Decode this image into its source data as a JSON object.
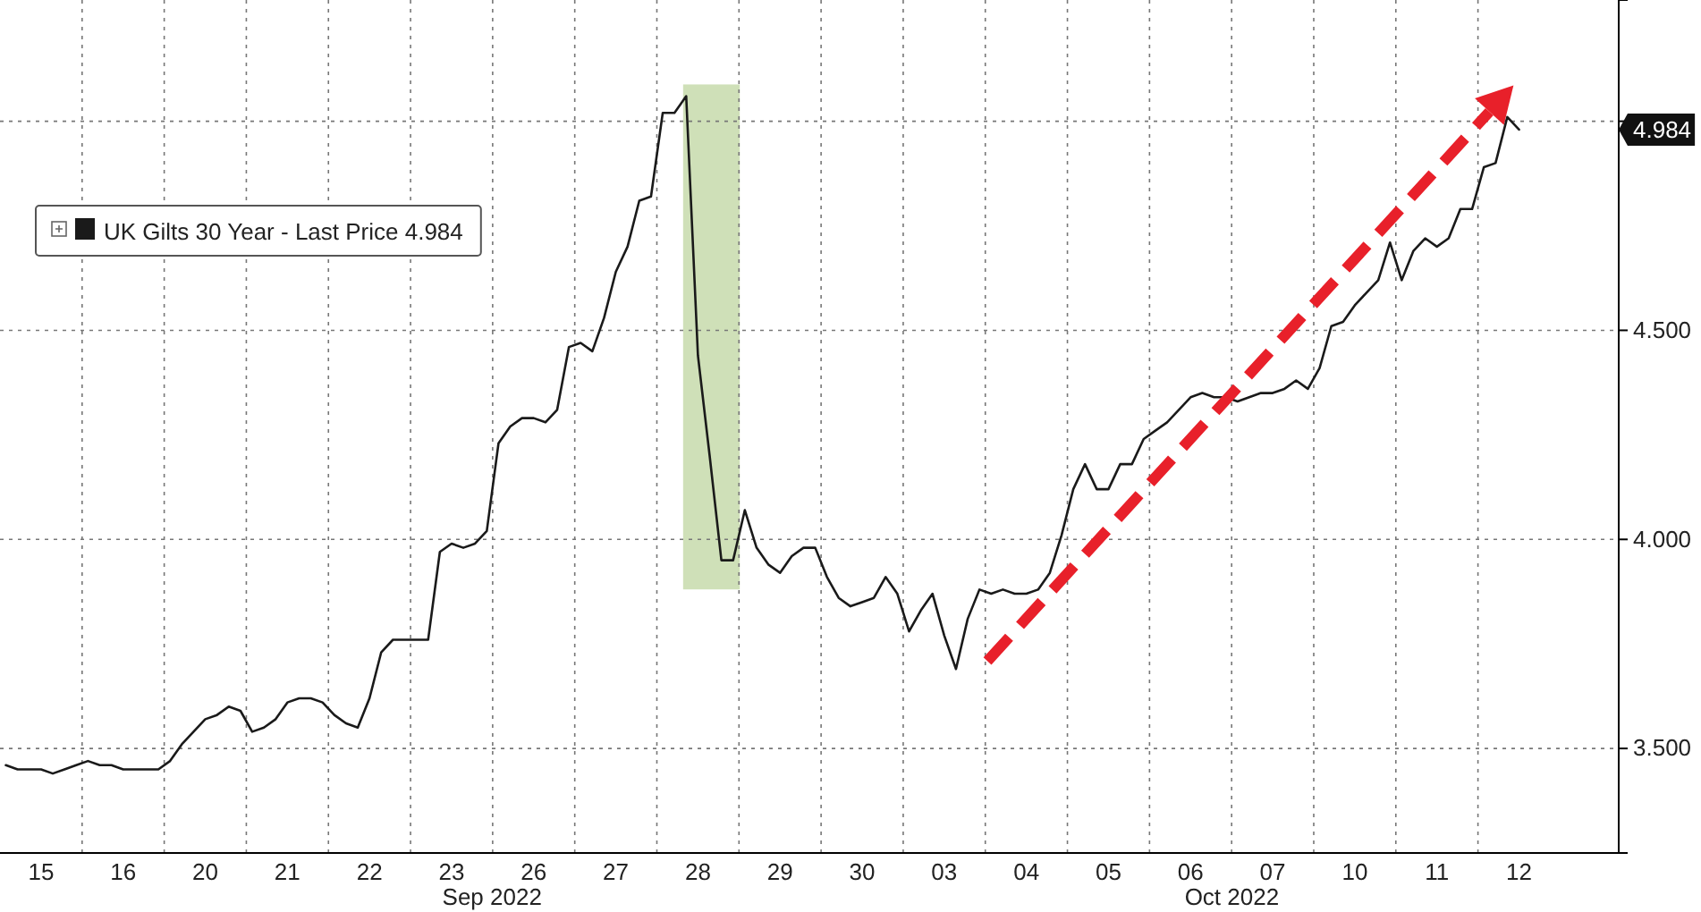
{
  "chart_data": {
    "type": "line",
    "categories": [
      null,
      null,
      null,
      "15",
      null,
      null,
      null,
      null,
      null,
      null,
      "16",
      null,
      null,
      null,
      null,
      null,
      null,
      "20",
      null,
      null,
      null,
      null,
      null,
      null,
      "21",
      null,
      null,
      null,
      null,
      null,
      null,
      "22",
      null,
      null,
      null,
      null,
      null,
      null,
      "23",
      null,
      null,
      null,
      null,
      null,
      null,
      "26",
      null,
      null,
      null,
      null,
      null,
      null,
      "27",
      null,
      null,
      null,
      null,
      null,
      null,
      "28",
      null,
      null,
      null,
      null,
      null,
      null,
      "29",
      null,
      null,
      null,
      null,
      null,
      null,
      "30",
      null,
      null,
      null,
      null,
      null,
      null,
      "03",
      null,
      null,
      null,
      null,
      null,
      null,
      "04",
      null,
      null,
      null,
      null,
      null,
      null,
      "05",
      null,
      null,
      null,
      null,
      null,
      null,
      "06",
      null,
      null,
      null,
      null,
      null,
      null,
      "07",
      null,
      null,
      null,
      null,
      null,
      null,
      "10",
      null,
      null,
      null,
      null,
      null,
      null,
      "11",
      null,
      null,
      null,
      null,
      null,
      null,
      "12",
      null,
      null,
      null
    ],
    "series": [
      {
        "name": "UK Gilts 30 Year - Last Price 4.984",
        "color": "#1a1a1a",
        "values": [
          3.46,
          3.45,
          3.45,
          3.45,
          3.44,
          3.45,
          3.46,
          3.47,
          3.46,
          3.46,
          3.45,
          3.45,
          3.45,
          3.45,
          3.47,
          3.51,
          3.54,
          3.57,
          3.58,
          3.6,
          3.59,
          3.54,
          3.55,
          3.57,
          3.61,
          3.62,
          3.62,
          3.61,
          3.58,
          3.56,
          3.55,
          3.62,
          3.73,
          3.76,
          3.76,
          3.76,
          3.76,
          3.97,
          3.99,
          3.98,
          3.99,
          4.02,
          4.23,
          4.27,
          4.29,
          4.29,
          4.28,
          4.31,
          4.46,
          4.47,
          4.45,
          4.53,
          4.64,
          4.7,
          4.81,
          4.82,
          5.02,
          5.02,
          5.06,
          4.44,
          4.2,
          3.95,
          3.95,
          4.07,
          3.98,
          3.94,
          3.92,
          3.96,
          3.98,
          3.98,
          3.91,
          3.86,
          3.84,
          3.85,
          3.86,
          3.91,
          3.87,
          3.78,
          3.83,
          3.87,
          3.77,
          3.69,
          3.81,
          3.88,
          3.87,
          3.88,
          3.87,
          3.87,
          3.88,
          3.92,
          4.01,
          4.12,
          4.18,
          4.12,
          4.12,
          4.18,
          4.18,
          4.24,
          4.26,
          4.28,
          4.31,
          4.34,
          4.35,
          4.34,
          4.34,
          4.33,
          4.34,
          4.35,
          4.35,
          4.36,
          4.38,
          4.36,
          4.41,
          4.51,
          4.52,
          4.56,
          4.59,
          4.62,
          4.71,
          4.62,
          4.69,
          4.72,
          4.7,
          4.72,
          4.79,
          4.79,
          4.89,
          4.9,
          5.01,
          4.98,
          null,
          null,
          null
        ]
      }
    ],
    "ylim": [
      3.25,
      5.29
    ],
    "yticks": [
      {
        "value": 3.5,
        "label": "3.500"
      },
      {
        "value": 4.0,
        "label": "4.000"
      },
      {
        "value": 4.5,
        "label": "4.500"
      },
      {
        "value": 5.0,
        "label": null
      }
    ],
    "grid": true,
    "legend": "top left",
    "annotations": [
      "4.984",
      "Sep 2022",
      "Oct 2022"
    ]
  }
}
